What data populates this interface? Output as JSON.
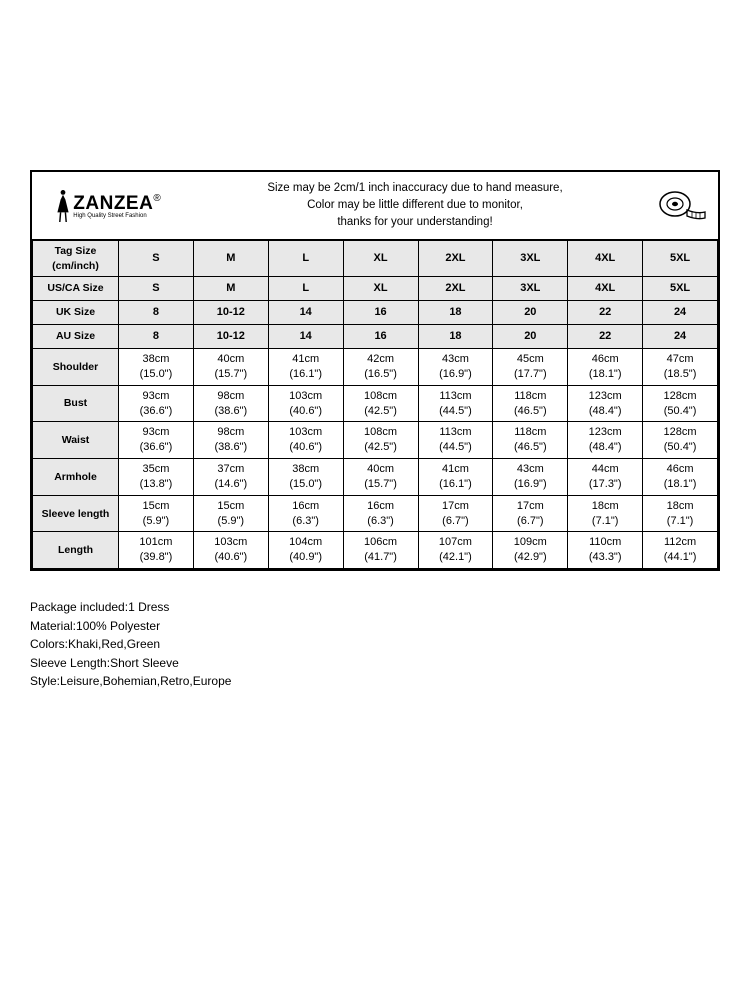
{
  "brand": {
    "name": "ZANZEA",
    "reg": "®",
    "tagline": "High Quality Street Fashion"
  },
  "disclaimer": {
    "line1": "Size may be 2cm/1 inch inaccuracy due to hand measure,",
    "line2": "Color may be little different due to monitor,",
    "line3": "thanks for your understanding!"
  },
  "rows": {
    "tag": {
      "label": "Tag Size\n(cm/inch)",
      "v": [
        "S",
        "M",
        "L",
        "XL",
        "2XL",
        "3XL",
        "4XL",
        "5XL"
      ]
    },
    "usca": {
      "label": "US/CA Size",
      "v": [
        "S",
        "M",
        "L",
        "XL",
        "2XL",
        "3XL",
        "4XL",
        "5XL"
      ]
    },
    "uk": {
      "label": "UK Size",
      "v": [
        "8",
        "10-12",
        "14",
        "16",
        "18",
        "20",
        "22",
        "24"
      ]
    },
    "au": {
      "label": "AU Size",
      "v": [
        "8",
        "10-12",
        "14",
        "16",
        "18",
        "20",
        "22",
        "24"
      ]
    },
    "shoulder": {
      "label": "Shoulder",
      "v": [
        "38cm\n(15.0\")",
        "40cm\n(15.7\")",
        "41cm\n(16.1\")",
        "42cm\n(16.5\")",
        "43cm\n(16.9\")",
        "45cm\n(17.7\")",
        "46cm\n(18.1\")",
        "47cm\n(18.5\")"
      ]
    },
    "bust": {
      "label": "Bust",
      "v": [
        "93cm\n(36.6\")",
        "98cm\n(38.6\")",
        "103cm\n(40.6\")",
        "108cm\n(42.5\")",
        "113cm\n(44.5\")",
        "118cm\n(46.5\")",
        "123cm\n(48.4\")",
        "128cm\n(50.4\")"
      ]
    },
    "waist": {
      "label": "Waist",
      "v": [
        "93cm\n(36.6\")",
        "98cm\n(38.6\")",
        "103cm\n(40.6\")",
        "108cm\n(42.5\")",
        "113cm\n(44.5\")",
        "118cm\n(46.5\")",
        "123cm\n(48.4\")",
        "128cm\n(50.4\")"
      ]
    },
    "armhole": {
      "label": "Armhole",
      "v": [
        "35cm\n(13.8\")",
        "37cm\n(14.6\")",
        "38cm\n(15.0\")",
        "40cm\n(15.7\")",
        "41cm\n(16.1\")",
        "43cm\n(16.9\")",
        "44cm\n(17.3\")",
        "46cm\n(18.1\")"
      ]
    },
    "sleeve": {
      "label": "Sleeve length",
      "v": [
        "15cm\n(5.9\")",
        "15cm\n(5.9\")",
        "16cm\n(6.3\")",
        "16cm\n(6.3\")",
        "17cm\n(6.7\")",
        "17cm\n(6.7\")",
        "18cm\n(7.1\")",
        "18cm\n(7.1\")"
      ]
    },
    "length": {
      "label": "Length",
      "v": [
        "101cm\n(39.8\")",
        "103cm\n(40.6\")",
        "104cm\n(40.9\")",
        "106cm\n(41.7\")",
        "107cm\n(42.1\")",
        "109cm\n(42.9\")",
        "110cm\n(43.3\")",
        "112cm\n(44.1\")"
      ]
    }
  },
  "details": {
    "l1": "Package included:1 Dress",
    "l2": "Material:100% Polyester",
    "l3": "Colors:Khaki,Red,Green",
    "l4": "Sleeve Length:Short Sleeve",
    "l5": "Style:Leisure,Bohemian,Retro,Europe"
  },
  "style": {
    "header_bg": "#e8e8e8",
    "border_color": "#000000",
    "font_size_cell": 11,
    "font_size_detail": 12
  }
}
